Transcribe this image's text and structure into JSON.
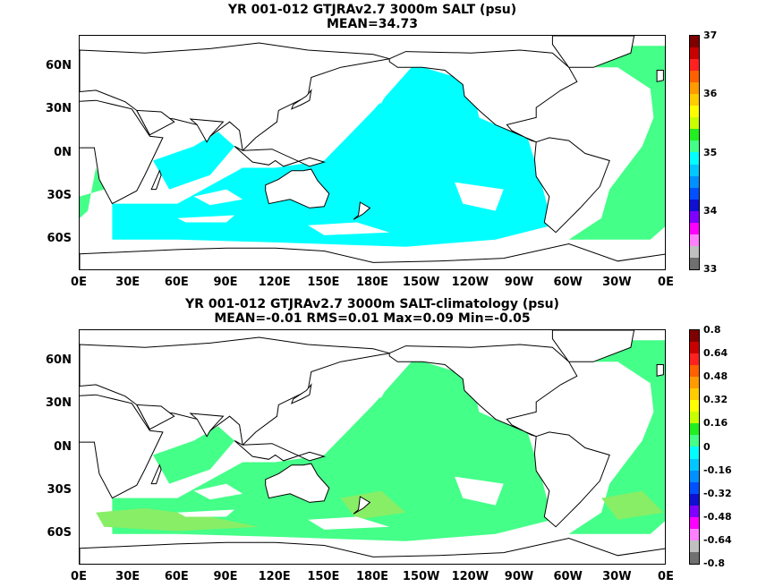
{
  "panels": [
    {
      "title1": "YR 001-012 GTJRAv2.7 3000m SALT (psu)",
      "title2": "MEAN=34.73",
      "y_ticks": [
        "60N",
        "30N",
        "0N",
        "30S",
        "60S"
      ],
      "x_ticks": [
        "0E",
        "30E",
        "60E",
        "90E",
        "120E",
        "150E",
        "180E",
        "150W",
        "120W",
        "90W",
        "60W",
        "30W",
        "0E"
      ],
      "colorbar_labels": [
        "37",
        "36",
        "35",
        "34",
        "33"
      ],
      "colorbar_colors": [
        "#7f0000",
        "#c80000",
        "#ff2020",
        "#ff6000",
        "#ff9a00",
        "#ffcc00",
        "#ffff00",
        "#c8ff00",
        "#22ee22",
        "#44ff88",
        "#00ffff",
        "#00c8ff",
        "#0090ff",
        "#0050ff",
        "#1010d0",
        "#8000ff",
        "#ff00ff",
        "#ff80ff",
        "#c0c0c0",
        "#707070"
      ],
      "dominant_fill": "#00ffff",
      "secondary_fill": "#44ff88"
    },
    {
      "title1": "YR 001-012 GTJRAv2.7 3000m SALT-climatology (psu)",
      "title2": "MEAN=-0.01   RMS=0.01   Max=0.09   Min=-0.05",
      "y_ticks": [
        "60N",
        "30N",
        "0N",
        "30S",
        "60S"
      ],
      "x_ticks": [
        "0E",
        "30E",
        "60E",
        "90E",
        "120E",
        "150E",
        "180E",
        "150W",
        "120W",
        "90W",
        "60W",
        "30W",
        "0E"
      ],
      "colorbar_labels": [
        "0.8",
        "0.64",
        "0.48",
        "0.32",
        "0.16",
        "0",
        "-0.16",
        "-0.32",
        "-0.48",
        "-0.64",
        "-0.8"
      ],
      "colorbar_colors": [
        "#7f0000",
        "#c80000",
        "#ff2020",
        "#ff6000",
        "#ff9a00",
        "#ffcc00",
        "#ffff00",
        "#c8ff00",
        "#22ee22",
        "#44ff88",
        "#00ffff",
        "#00c8ff",
        "#0090ff",
        "#0050ff",
        "#1010d0",
        "#8000ff",
        "#ff00ff",
        "#ff80ff",
        "#c0c0c0",
        "#707070"
      ],
      "dominant_fill": "#44ff88",
      "secondary_fill": "#88ee66"
    }
  ]
}
